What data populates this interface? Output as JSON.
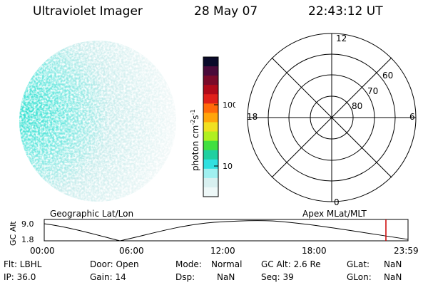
{
  "header": {
    "instrument": "Ultraviolet Imager",
    "date": "28 May 07",
    "time": "22:43:12 UT"
  },
  "colorbar": {
    "unit_label": "photon cm",
    "unit_exp1": "-2",
    "unit_mid": "s",
    "unit_exp2": "-1",
    "ticks": [
      "100",
      "10"
    ],
    "colors": [
      "#0a0a2a",
      "#4a0a3a",
      "#7a0a2a",
      "#b00a1a",
      "#e0201a",
      "#ff6a0a",
      "#ffa50a",
      "#f0e020",
      "#b0f020",
      "#40e040",
      "#20d0a0",
      "#30e0e0",
      "#a0f0f0",
      "#d8f0f0",
      "#eef8f8"
    ]
  },
  "polar": {
    "mlt_labels": {
      "top": "12",
      "left": "18",
      "right": "6",
      "bottom": "0"
    },
    "lat_labels": [
      "60",
      "70",
      "80"
    ]
  },
  "timeline": {
    "left_label": "Geographic Lat/Lon",
    "right_label": "Apex MLat/MLT",
    "axis_title": "GC Alt",
    "y_ticks": [
      "9.0",
      "1.8"
    ],
    "x_ticks": [
      "00:00",
      "06:00",
      "12:00",
      "18:00",
      "23:59"
    ],
    "marker_color": "#cc0000"
  },
  "info": {
    "flt": "Flt: LBHL",
    "ip": "IP: 36.0",
    "door": "Door: Open",
    "gain": "Gain: 14",
    "mode_label": "Mode:",
    "mode_value": "Normal",
    "dsp_label": "Dsp:",
    "dsp_value": "NaN",
    "gcalt": "GC Alt: 2.6 Re",
    "seq": "Seq: 39",
    "glat_label": "GLat:",
    "glat_value": "NaN",
    "glon_label": "GLon:",
    "glon_value": "NaN"
  }
}
